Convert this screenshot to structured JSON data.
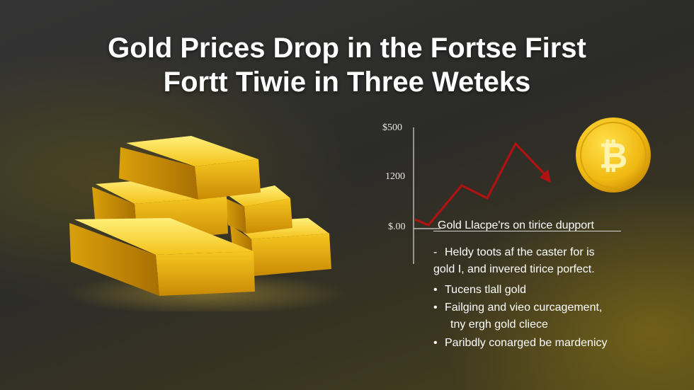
{
  "headline": {
    "line1": "Gold Prices Drop in the Fortse First",
    "line2": "Fortt Tiwie in Three Weteks"
  },
  "chart": {
    "y_tick_labels": [
      "$500",
      "1200",
      "$.00"
    ],
    "caption": "Gold Llacpe'rs on tirice dupport",
    "line_color": "#b01212"
  },
  "coin": {
    "icon": "bitcoin-coin-icon",
    "symbol": "₿"
  },
  "notes": [
    {
      "marker": "-",
      "lines": [
        "Heldy toots af the caster for is",
        "gold I, and invered tirice porfect."
      ]
    },
    {
      "marker": "•",
      "lines": [
        "Tucens tlall gold"
      ]
    },
    {
      "marker": "•",
      "lines": [
        "Failging and vieo curcagement,",
        "tny ergh gold cliece"
      ]
    },
    {
      "marker": "•",
      "lines": [
        "Paribdly conarged be mardenicy"
      ]
    }
  ],
  "colors": {
    "gold": "#f2c21a",
    "accent_red": "#b01212"
  }
}
